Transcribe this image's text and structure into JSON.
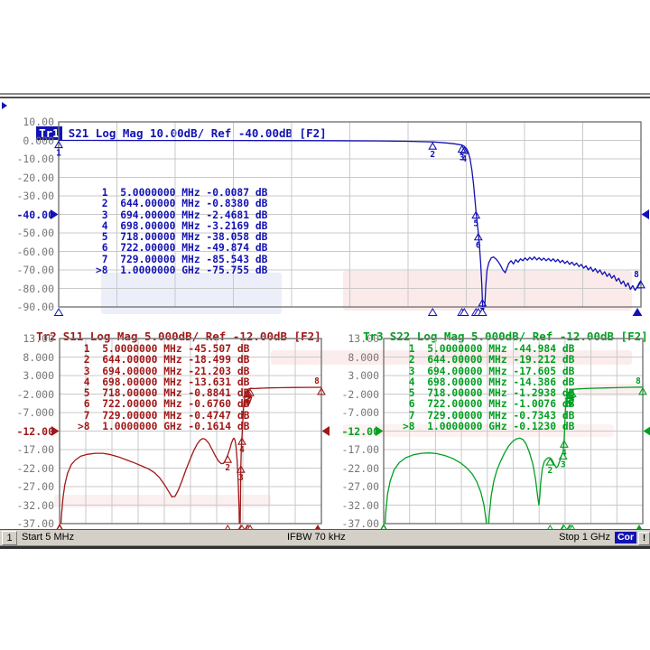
{
  "status_bar": {
    "channel": "1",
    "start": "Start 5 MHz",
    "ifbw": "IFBW 70 kHz",
    "stop": "Stop 1 GHz",
    "cor": "Cor",
    "warn": "!"
  },
  "watermark": {
    "red": "#efb9b9",
    "blue": "#b9c6e8"
  },
  "chart_data": [
    {
      "type": "line",
      "title": "Tr1 S21 Log Mag 10.00dB/ Ref -40.00dB [F2]",
      "tr": "Tr1",
      "tr_rest": "S21 Log Mag 10.00dB/ Ref -40.00dB [F2]",
      "color": "#1212b4",
      "value_unit": "dB",
      "x_axis": {
        "start_mhz": 5,
        "stop_mhz": 1000
      },
      "ylim": [
        -90,
        10
      ],
      "ytick_labels": [
        "10.00",
        "0.000",
        "-10.00",
        "-20.00",
        "-30.00",
        "-40.00",
        "-50.00",
        "-60.00",
        "-70.00",
        "-80.00",
        "-90.00"
      ],
      "ref_index": 5,
      "ref_value": -40,
      "markers": [
        {
          "n": "1",
          "freq_text": "5.0000000",
          "unit": "MHz",
          "value_text": "-0.0087",
          "f_mhz": 5,
          "db": -0.0087
        },
        {
          "n": "2",
          "freq_text": "644.00000",
          "unit": "MHz",
          "value_text": "-0.8380",
          "f_mhz": 644,
          "db": -0.838
        },
        {
          "n": "3",
          "freq_text": "694.00000",
          "unit": "MHz",
          "value_text": "-2.4681",
          "f_mhz": 694,
          "db": -2.4681
        },
        {
          "n": "4",
          "freq_text": "698.00000",
          "unit": "MHz",
          "value_text": "-3.2169",
          "f_mhz": 698,
          "db": -3.2169
        },
        {
          "n": "5",
          "freq_text": "718.00000",
          "unit": "MHz",
          "value_text": "-38.058",
          "f_mhz": 718,
          "db": -38.058
        },
        {
          "n": "6",
          "freq_text": "722.00000",
          "unit": "MHz",
          "value_text": "-49.874",
          "f_mhz": 722,
          "db": -49.874
        },
        {
          "n": "7",
          "freq_text": "729.00000",
          "unit": "MHz",
          "value_text": "-85.543",
          "f_mhz": 729,
          "db": -85.543
        },
        {
          "n": ">8",
          "freq_text": "1.0000000",
          "unit": "GHz",
          "value_text": "-75.755",
          "f_mhz": 1000,
          "db": -75.755
        }
      ],
      "series": [
        [
          5,
          -0.01
        ],
        [
          60,
          -0.02
        ],
        [
          150,
          -0.03
        ],
        [
          250,
          -0.05
        ],
        [
          350,
          -0.08
        ],
        [
          450,
          -0.15
        ],
        [
          550,
          -0.3
        ],
        [
          600,
          -0.5
        ],
        [
          644,
          -0.84
        ],
        [
          665,
          -1.3
        ],
        [
          680,
          -1.8
        ],
        [
          694,
          -2.47
        ],
        [
          698,
          -3.22
        ],
        [
          702,
          -4.5
        ],
        [
          705,
          -6.5
        ],
        [
          708,
          -10
        ],
        [
          711,
          -16
        ],
        [
          714,
          -24
        ],
        [
          716,
          -31
        ],
        [
          718,
          -38.06
        ],
        [
          720,
          -44
        ],
        [
          722,
          -49.9
        ],
        [
          724,
          -57
        ],
        [
          726,
          -66
        ],
        [
          728,
          -78
        ],
        [
          729,
          -85.5
        ],
        [
          730,
          -94
        ],
        [
          731.5,
          -97
        ],
        [
          733,
          -90
        ],
        [
          735,
          -78
        ],
        [
          737,
          -70
        ],
        [
          740,
          -66
        ],
        [
          744,
          -63.5
        ],
        [
          748,
          -63
        ],
        [
          752,
          -64
        ],
        [
          756,
          -65.5
        ],
        [
          760,
          -67.5
        ],
        [
          764,
          -70
        ],
        [
          768,
          -71.5
        ],
        [
          771,
          -69
        ],
        [
          774,
          -66.5
        ],
        [
          778,
          -65
        ],
        [
          782,
          -66.8
        ],
        [
          786,
          -64.5
        ],
        [
          790,
          -65.8
        ],
        [
          794,
          -64
        ],
        [
          798,
          -65
        ],
        [
          802,
          -63.5
        ],
        [
          806,
          -64.8
        ],
        [
          810,
          -63.2
        ],
        [
          814,
          -64.5
        ],
        [
          818,
          -63
        ],
        [
          822,
          -64.6
        ],
        [
          826,
          -63.4
        ],
        [
          830,
          -64.8
        ],
        [
          834,
          -63.6
        ],
        [
          838,
          -65
        ],
        [
          842,
          -63.8
        ],
        [
          846,
          -65.2
        ],
        [
          850,
          -64
        ],
        [
          854,
          -65.5
        ],
        [
          858,
          -64.3
        ],
        [
          862,
          -66
        ],
        [
          866,
          -64.8
        ],
        [
          870,
          -66.5
        ],
        [
          874,
          -65.2
        ],
        [
          878,
          -67
        ],
        [
          882,
          -65.8
        ],
        [
          886,
          -67.5
        ],
        [
          890,
          -66.3
        ],
        [
          894,
          -68.2
        ],
        [
          898,
          -67
        ],
        [
          902,
          -69
        ],
        [
          906,
          -67.8
        ],
        [
          910,
          -70
        ],
        [
          914,
          -68.5
        ],
        [
          918,
          -70.8
        ],
        [
          922,
          -69.3
        ],
        [
          926,
          -71.5
        ],
        [
          930,
          -70
        ],
        [
          934,
          -72.5
        ],
        [
          938,
          -71
        ],
        [
          942,
          -73.5
        ],
        [
          946,
          -72
        ],
        [
          950,
          -74.5
        ],
        [
          954,
          -73
        ],
        [
          958,
          -76
        ],
        [
          962,
          -74.5
        ],
        [
          966,
          -77.5
        ],
        [
          970,
          -76
        ],
        [
          974,
          -79
        ],
        [
          978,
          -77
        ],
        [
          982,
          -80.5
        ],
        [
          986,
          -78.5
        ],
        [
          990,
          -81
        ],
        [
          994,
          -79
        ],
        [
          997,
          -77
        ],
        [
          1000,
          -75.755
        ]
      ]
    },
    {
      "type": "line",
      "title": "Tr2 S11 Log Mag 5.000dB/ Ref -12.00dB [F2]",
      "tr": "Tr2",
      "tr_rest": "S11 Log Mag 5.000dB/ Ref -12.00dB [F2]",
      "color": "#a01818",
      "value_unit": "dB",
      "x_axis": {
        "start_mhz": 5,
        "stop_mhz": 1000
      },
      "ylim": [
        -37,
        13
      ],
      "ytick_labels": [
        "13.00",
        "8.000",
        "3.000",
        "-2.000",
        "-7.000",
        "-12.00",
        "-17.00",
        "-22.00",
        "-27.00",
        "-32.00",
        "-37.00"
      ],
      "ref_index": 5,
      "ref_value": -12,
      "markers": [
        {
          "n": "1",
          "freq_text": "5.0000000",
          "unit": "MHz",
          "value_text": "-45.507",
          "f_mhz": 5,
          "db": -45.507
        },
        {
          "n": "2",
          "freq_text": "644.00000",
          "unit": "MHz",
          "value_text": "-18.499",
          "f_mhz": 644,
          "db": -18.499
        },
        {
          "n": "3",
          "freq_text": "694.00000",
          "unit": "MHz",
          "value_text": "-21.203",
          "f_mhz": 694,
          "db": -21.203
        },
        {
          "n": "4",
          "freq_text": "698.00000",
          "unit": "MHz",
          "value_text": "-13.631",
          "f_mhz": 698,
          "db": -13.631
        },
        {
          "n": "5",
          "freq_text": "718.00000",
          "unit": "MHz",
          "value_text": "-0.8841",
          "f_mhz": 718,
          "db": -0.8841
        },
        {
          "n": "6",
          "freq_text": "722.00000",
          "unit": "MHz",
          "value_text": "-0.6760",
          "f_mhz": 722,
          "db": -0.676
        },
        {
          "n": "7",
          "freq_text": "729.00000",
          "unit": "MHz",
          "value_text": "-0.4747",
          "f_mhz": 729,
          "db": -0.4747
        },
        {
          "n": ">8",
          "freq_text": "1.0000000",
          "unit": "GHz",
          "value_text": "-0.1614",
          "f_mhz": 1000,
          "db": -0.1614
        }
      ],
      "series": [
        [
          5,
          -45.5
        ],
        [
          8,
          -40
        ],
        [
          12,
          -35
        ],
        [
          18,
          -30
        ],
        [
          25,
          -26.5
        ],
        [
          35,
          -23.5
        ],
        [
          50,
          -21
        ],
        [
          65,
          -19.8
        ],
        [
          85,
          -18.8
        ],
        [
          110,
          -18.3
        ],
        [
          140,
          -18
        ],
        [
          170,
          -18
        ],
        [
          200,
          -18.4
        ],
        [
          230,
          -19
        ],
        [
          260,
          -19.8
        ],
        [
          290,
          -20.6
        ],
        [
          320,
          -21.5
        ],
        [
          345,
          -22.3
        ],
        [
          365,
          -23.2
        ],
        [
          385,
          -24.6
        ],
        [
          405,
          -26.6
        ],
        [
          420,
          -28.4
        ],
        [
          432,
          -29.8
        ],
        [
          444,
          -29.6
        ],
        [
          456,
          -28
        ],
        [
          470,
          -25.5
        ],
        [
          485,
          -22.5
        ],
        [
          500,
          -19.8
        ],
        [
          515,
          -17.3
        ],
        [
          528,
          -15.5
        ],
        [
          540,
          -14.4
        ],
        [
          550,
          -14
        ],
        [
          560,
          -14.3
        ],
        [
          572,
          -15.3
        ],
        [
          585,
          -17
        ],
        [
          598,
          -18.8
        ],
        [
          610,
          -20.2
        ],
        [
          620,
          -20.8
        ],
        [
          628,
          -20.7
        ],
        [
          636,
          -19.8
        ],
        [
          644,
          -18.5
        ],
        [
          652,
          -16.8
        ],
        [
          658,
          -15.3
        ],
        [
          664,
          -14.2
        ],
        [
          668,
          -13.9
        ],
        [
          672,
          -14.5
        ],
        [
          676,
          -16.5
        ],
        [
          680,
          -20
        ],
        [
          684,
          -26
        ],
        [
          687,
          -33
        ],
        [
          689,
          -40
        ],
        [
          690.5,
          -44
        ],
        [
          692,
          -34
        ],
        [
          694,
          -21.2
        ],
        [
          696,
          -16
        ],
        [
          698,
          -13.63
        ],
        [
          700,
          -11
        ],
        [
          703,
          -7
        ],
        [
          706,
          -4.2
        ],
        [
          710,
          -2.3
        ],
        [
          714,
          -1.4
        ],
        [
          718,
          -0.884
        ],
        [
          722,
          -0.676
        ],
        [
          729,
          -0.475
        ],
        [
          745,
          -0.52
        ],
        [
          760,
          -0.46
        ],
        [
          780,
          -0.4
        ],
        [
          800,
          -0.34
        ],
        [
          830,
          -0.3
        ],
        [
          860,
          -0.26
        ],
        [
          900,
          -0.22
        ],
        [
          950,
          -0.19
        ],
        [
          1000,
          -0.1614
        ]
      ]
    },
    {
      "type": "line",
      "title": "Tr3 S22 Log Mag 5.000dB/ Ref -12.00dB [F2]",
      "tr": "Tr3",
      "tr_rest": "S22 Log Mag 5.000dB/ Ref -12.00dB [F2]",
      "color": "#00a020",
      "value_unit": "dB",
      "x_axis": {
        "start_mhz": 5,
        "stop_mhz": 1000
      },
      "ylim": [
        -37,
        13
      ],
      "ytick_labels": [
        "13.00",
        "8.000",
        "3.000",
        "-2.000",
        "-7.000",
        "-12.00",
        "-17.00",
        "-22.00",
        "-27.00",
        "-32.00",
        "-37.00"
      ],
      "ref_index": 5,
      "ref_value": -12,
      "markers": [
        {
          "n": "1",
          "freq_text": "5.0000000",
          "unit": "MHz",
          "value_text": "-44.984",
          "f_mhz": 5,
          "db": -44.984
        },
        {
          "n": "2",
          "freq_text": "644.00000",
          "unit": "MHz",
          "value_text": "-19.212",
          "f_mhz": 644,
          "db": -19.212
        },
        {
          "n": "3",
          "freq_text": "694.00000",
          "unit": "MHz",
          "value_text": "-17.605",
          "f_mhz": 694,
          "db": -17.605
        },
        {
          "n": "4",
          "freq_text": "698.00000",
          "unit": "MHz",
          "value_text": "-14.386",
          "f_mhz": 698,
          "db": -14.386
        },
        {
          "n": "5",
          "freq_text": "718.00000",
          "unit": "MHz",
          "value_text": "-1.2938",
          "f_mhz": 718,
          "db": -1.2938
        },
        {
          "n": "6",
          "freq_text": "722.00000",
          "unit": "MHz",
          "value_text": "-1.0076",
          "f_mhz": 722,
          "db": -1.0076
        },
        {
          "n": "7",
          "freq_text": "729.00000",
          "unit": "MHz",
          "value_text": "-0.7343",
          "f_mhz": 729,
          "db": -0.7343
        },
        {
          "n": ">8",
          "freq_text": "1.0000000",
          "unit": "GHz",
          "value_text": "-0.1230",
          "f_mhz": 1000,
          "db": -0.123
        }
      ],
      "series": [
        [
          5,
          -45
        ],
        [
          8,
          -40
        ],
        [
          13,
          -34
        ],
        [
          20,
          -29
        ],
        [
          30,
          -25.5
        ],
        [
          45,
          -22.5
        ],
        [
          65,
          -20.5
        ],
        [
          90,
          -19.2
        ],
        [
          120,
          -18.4
        ],
        [
          150,
          -18
        ],
        [
          180,
          -17.9
        ],
        [
          210,
          -18.1
        ],
        [
          240,
          -18.6
        ],
        [
          270,
          -19.4
        ],
        [
          300,
          -20.6
        ],
        [
          325,
          -22
        ],
        [
          345,
          -23.6
        ],
        [
          362,
          -25.6
        ],
        [
          378,
          -28.5
        ],
        [
          390,
          -32
        ],
        [
          398,
          -36
        ],
        [
          402,
          -40
        ],
        [
          406,
          -40
        ],
        [
          410,
          -35
        ],
        [
          418,
          -29.5
        ],
        [
          428,
          -25.5
        ],
        [
          440,
          -22.5
        ],
        [
          455,
          -20
        ],
        [
          470,
          -17.8
        ],
        [
          485,
          -16
        ],
        [
          500,
          -14.8
        ],
        [
          515,
          -14.1
        ],
        [
          528,
          -13.9
        ],
        [
          540,
          -14.3
        ],
        [
          552,
          -15.5
        ],
        [
          565,
          -17.8
        ],
        [
          578,
          -21
        ],
        [
          588,
          -25
        ],
        [
          596,
          -29.5
        ],
        [
          601,
          -32
        ],
        [
          604,
          -30
        ],
        [
          608,
          -26
        ],
        [
          614,
          -22.2
        ],
        [
          622,
          -20.2
        ],
        [
          630,
          -19.5
        ],
        [
          638,
          -19.2
        ],
        [
          644,
          -19.212
        ],
        [
          652,
          -19.8
        ],
        [
          660,
          -21
        ],
        [
          668,
          -21.9
        ],
        [
          674,
          -21.5
        ],
        [
          680,
          -20.3
        ],
        [
          687,
          -18.8
        ],
        [
          694,
          -17.605
        ],
        [
          698,
          -14.386
        ],
        [
          700,
          -11
        ],
        [
          703,
          -6.5
        ],
        [
          706,
          -3.6
        ],
        [
          710,
          -2.1
        ],
        [
          714,
          -1.55
        ],
        [
          718,
          -1.294
        ],
        [
          722,
          -1.008
        ],
        [
          729,
          -0.734
        ],
        [
          750,
          -0.62
        ],
        [
          780,
          -0.52
        ],
        [
          820,
          -0.42
        ],
        [
          860,
          -0.33
        ],
        [
          900,
          -0.26
        ],
        [
          950,
          -0.18
        ],
        [
          1000,
          -0.123
        ]
      ]
    }
  ]
}
